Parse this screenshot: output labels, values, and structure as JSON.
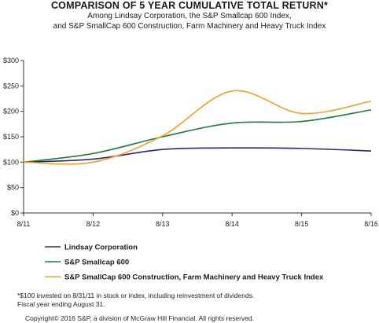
{
  "chart_data": {
    "type": "line",
    "title": "COMPARISON OF 5 YEAR CUMULATIVE TOTAL RETURN*",
    "subtitle_lines": [
      "Among Lindsay Corporation, the S&P Smallcap 600 Index,",
      "and S&P SmallCap 600 Construction, Farm Machinery and Heavy Truck Index"
    ],
    "x": [
      "8/11",
      "8/12",
      "8/13",
      "8/14",
      "8/15",
      "8/16"
    ],
    "y_ticks": [
      "$0",
      "$50",
      "$100",
      "$150",
      "$200",
      "$250",
      "$300"
    ],
    "ylim": [
      0,
      300
    ],
    "grid": false,
    "legend_position": "bottom-left",
    "series": [
      {
        "name": "Lindsay Corporation",
        "color": "#2b2a6e",
        "values": [
          100,
          106,
          125,
          128,
          127,
          122
        ]
      },
      {
        "name": "S&P Smallcap 600",
        "color": "#217a3c",
        "values": [
          100,
          117,
          150,
          177,
          180,
          203
        ]
      },
      {
        "name": "S&P SmallCap 600 Construction, Farm Machinery and Heavy Truck Index",
        "color": "#f0a030",
        "values": [
          100,
          100,
          152,
          240,
          196,
          220
        ]
      }
    ]
  },
  "footnotes": [
    "*$100 invested on 8/31/11 in stock or index, including reinvestment of dividends.",
    "Fiscal year ending August 31."
  ],
  "copyright": "Copyright© 2016 S&P, a division of McGraw Hill Financial. All rights reserved."
}
